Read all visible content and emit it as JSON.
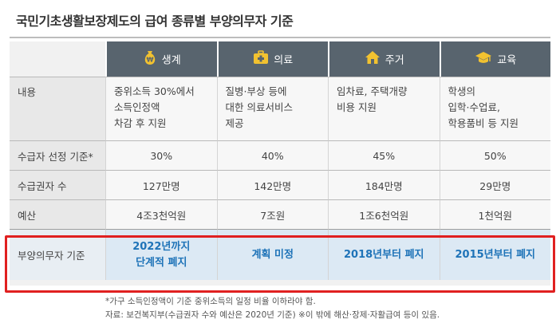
{
  "title": "국민기초생활보장제도의 급여 종류별 부양의무자 기준",
  "columns": [
    {
      "label": "생계",
      "icon": "money-bag-icon",
      "description_lines": [
        "중위소득 30%에서",
        "소득인정액",
        "차감 후 지원"
      ]
    },
    {
      "label": "의료",
      "icon": "medical-kit-icon",
      "description_lines": [
        "질병·부상 등에",
        "대한 의료서비스",
        "제공"
      ]
    },
    {
      "label": "주거",
      "icon": "house-icon",
      "description_lines": [
        "임차료, 주택개량",
        "비용 지원"
      ]
    },
    {
      "label": "교육",
      "icon": "graduation-cap-icon",
      "description_lines": [
        "학생의",
        "입학·수업료,",
        "학용품비 등 지원"
      ]
    }
  ],
  "rows": {
    "description_label": "내용",
    "selection_label": "수급자 선정 기준*",
    "selection": [
      "30%",
      "40%",
      "45%",
      "50%"
    ],
    "recipients_label": "수급권자 수",
    "recipients": [
      "127만명",
      "142만명",
      "184만명",
      "29만명"
    ],
    "budget_label": "예산",
    "budget": [
      "4조3천억원",
      "7조원",
      "1조6천억원",
      "1천억원"
    ],
    "obligor_label": "부양의무자 기준",
    "obligor": [
      [
        "2022년까지",
        "단계적 폐지"
      ],
      [
        "계획 미정"
      ],
      [
        "2018년부터 폐지"
      ],
      [
        "2015년부터 폐지"
      ]
    ]
  },
  "notes": [
    "*가구 소득인정액이 기준 중위소득의 일정 비율 이하라야 함.",
    "자료: 보건복지부(수급권자 수와 예산은 2020년 기준) ※이 밖에 해산·장제·자활급여 등이 있음."
  ],
  "colors": {
    "header": "#58646e",
    "highlight_text": "#1e73b8",
    "highlight_border": "#e02020",
    "icon_accent": "#f2c230"
  }
}
